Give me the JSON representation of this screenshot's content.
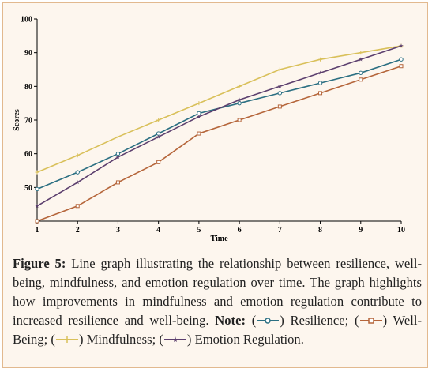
{
  "chart_data": {
    "type": "line",
    "title": "",
    "xlabel": "Time",
    "ylabel": "Scores",
    "x": [
      1,
      2,
      3,
      4,
      5,
      6,
      7,
      8,
      9,
      10
    ],
    "xlim": [
      1,
      10
    ],
    "ylim": [
      40,
      100
    ],
    "yticks": [
      50,
      60,
      70,
      80,
      90,
      100
    ],
    "grid": false,
    "series": [
      {
        "name": "Resilience",
        "color": "#2b6f82",
        "marker": "circle",
        "values": [
          49.5,
          54.5,
          60,
          66,
          72,
          75,
          78,
          81,
          84,
          88
        ]
      },
      {
        "name": "Well-Being",
        "color": "#b5653a",
        "marker": "square",
        "values": [
          40,
          44.5,
          51.5,
          57.5,
          66,
          70,
          74,
          78,
          82,
          86
        ]
      },
      {
        "name": "Mindfulness",
        "color": "#d9c05a",
        "marker": "plus",
        "values": [
          54.5,
          59.5,
          65,
          70,
          75,
          80,
          85,
          88,
          90,
          92
        ]
      },
      {
        "name": "Emotion Regulation",
        "color": "#5c3f6e",
        "marker": "star",
        "values": [
          44.5,
          51.5,
          59,
          65,
          71,
          76,
          80,
          84,
          88,
          92
        ]
      }
    ]
  },
  "caption": {
    "label": "Figure 5:",
    "text": "Line graph illustrating the relationship between resilience, well-being, mindfulness, and emotion regulation over time. The graph highlights how improvements in mindfulness and emotion regulation contribute to increased resilience and well-being.",
    "note_label": "Note:",
    "legend": [
      {
        "label": "Resilience;"
      },
      {
        "label": "Well-Being;"
      },
      {
        "label": "Mindfulness;"
      },
      {
        "label": "Emotion Regulation."
      }
    ]
  }
}
